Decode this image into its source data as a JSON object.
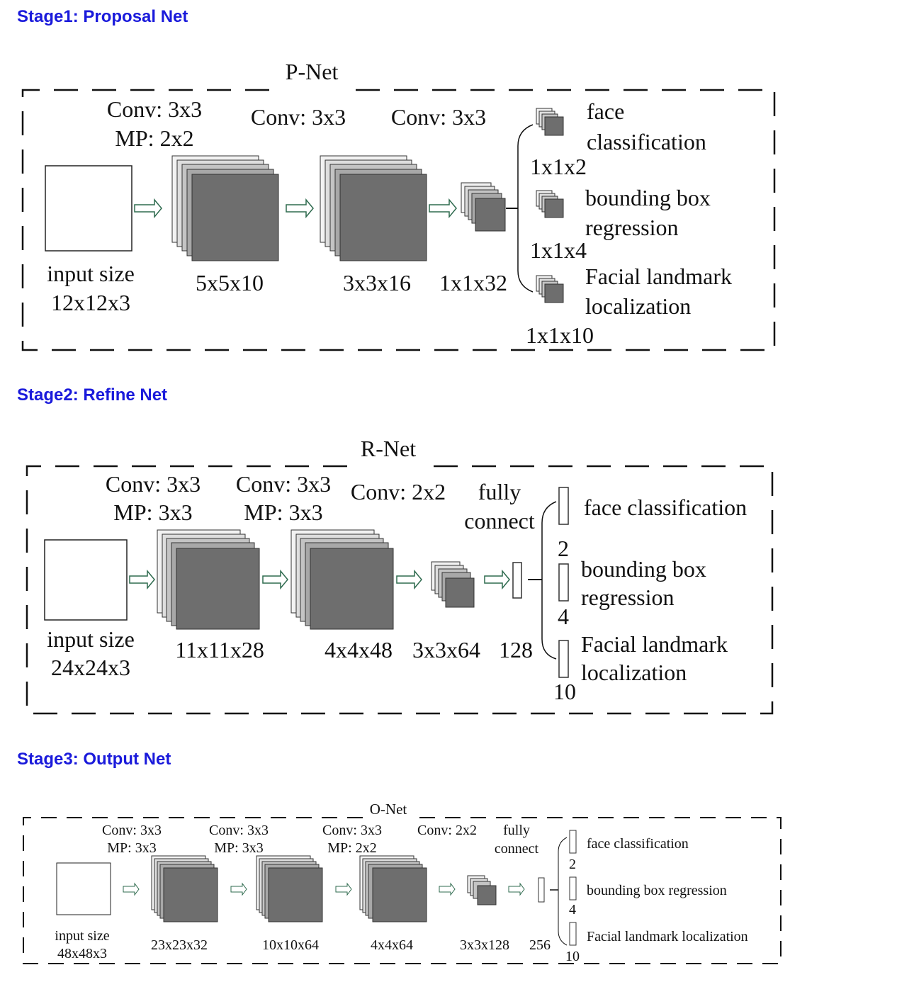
{
  "stage1": {
    "heading": "Stage1: Proposal Net",
    "title": "P-Net",
    "layer1_op": [
      "Conv: 3x3",
      "MP: 2x2"
    ],
    "layer2_op": "Conv: 3x3",
    "layer3_op": "Conv: 3x3",
    "input_label": [
      "input size",
      "12x12x3"
    ],
    "feat1": "5x5x10",
    "feat2": "3x3x16",
    "feat3": "1x1x32",
    "out1_label": [
      "face",
      "classification"
    ],
    "out1_dim": "1x1x2",
    "out2_label": [
      "bounding box",
      "regression"
    ],
    "out2_dim": "1x1x4",
    "out3_label": [
      "Facial landmark",
      "localization"
    ],
    "out3_dim": "1x1x10"
  },
  "stage2": {
    "heading": "Stage2: Refine Net",
    "title": "R-Net",
    "layer1_op": [
      "Conv: 3x3",
      "MP: 3x3"
    ],
    "layer2_op": [
      "Conv: 3x3",
      "MP: 3x3"
    ],
    "layer3_op": "Conv: 2x2",
    "fc_label": [
      "fully",
      "connect"
    ],
    "input_label": [
      "input size",
      "24x24x3"
    ],
    "feat1": "11x11x28",
    "feat2": "4x4x48",
    "feat3": "3x3x64",
    "fc_dim": "128",
    "out1_label": "face classification",
    "out1_dim": "2",
    "out2_label": [
      "bounding box",
      "regression"
    ],
    "out2_dim": "4",
    "out3_label": [
      "Facial landmark",
      "localization"
    ],
    "out3_dim": "10"
  },
  "stage3": {
    "heading": "Stage3: Output Net",
    "title": "O-Net",
    "layer1_op": [
      "Conv: 3x3",
      "MP: 3x3"
    ],
    "layer2_op": [
      "Conv: 3x3",
      "MP: 3x3"
    ],
    "layer3_op": [
      "Conv: 3x3",
      "MP: 2x2"
    ],
    "layer4_op": "Conv: 2x2",
    "fc_label": [
      "fully",
      "connect"
    ],
    "input_label": [
      "input size",
      "48x48x3"
    ],
    "feat1": "23x23x32",
    "feat2": "10x10x64",
    "feat3": "4x4x64",
    "feat4": "3x3x128",
    "fc_dim": "256",
    "out1_label": "face classification",
    "out1_dim": "2",
    "out2_label": "bounding box regression",
    "out2_dim": "4",
    "out3_label": "Facial landmark localization",
    "out3_dim": "10"
  },
  "colors": {
    "heading": "#1a1adb",
    "feature_front": "#6e6e6e",
    "arrow": "#2f6b4f"
  }
}
